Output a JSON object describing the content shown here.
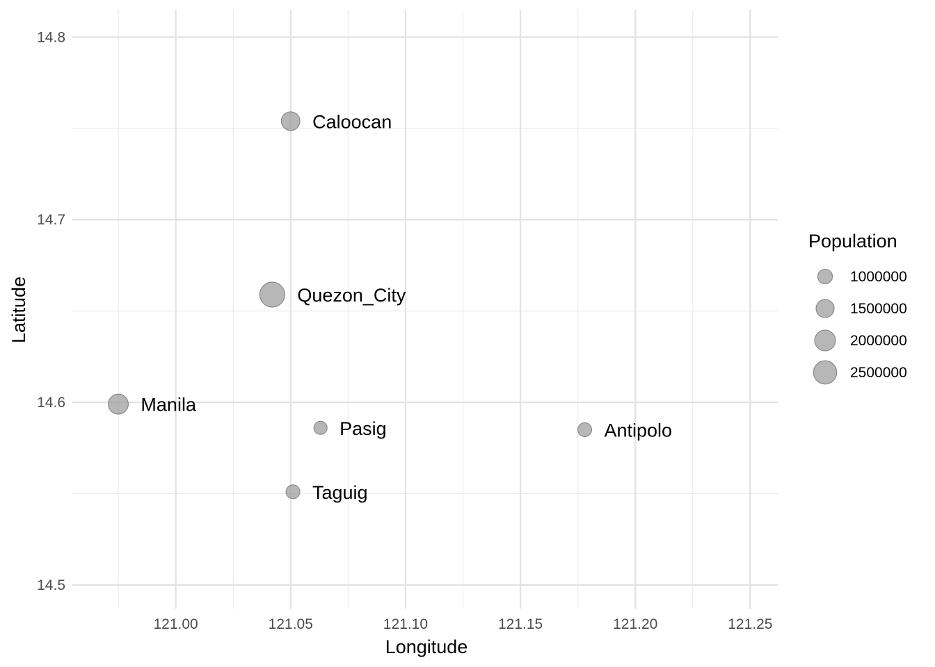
{
  "chart_data": {
    "type": "scatter",
    "title": "",
    "xlabel": "Longitude",
    "ylabel": "Latitude",
    "xlim": [
      120.955,
      121.262
    ],
    "ylim": [
      14.487,
      14.815
    ],
    "x_ticks": [
      121.0,
      121.05,
      121.1,
      121.15,
      121.2,
      121.25
    ],
    "x_tick_labels": [
      "121.00",
      "121.05",
      "121.10",
      "121.15",
      "121.20",
      "121.25"
    ],
    "y_ticks": [
      14.5,
      14.6,
      14.7,
      14.8
    ],
    "y_tick_labels": [
      "14.5",
      "14.6",
      "14.7",
      "14.8"
    ],
    "grid": true,
    "point_color": "#999999",
    "point_alpha": 0.7,
    "points": [
      {
        "label": "Caloocan",
        "x": 121.05,
        "y": 14.754,
        "size": 1600000
      },
      {
        "label": "Quezon_City",
        "x": 121.042,
        "y": 14.659,
        "size": 2900000
      },
      {
        "label": "Manila",
        "x": 120.975,
        "y": 14.599,
        "size": 1850000
      },
      {
        "label": "Pasig",
        "x": 121.063,
        "y": 14.586,
        "size": 800000
      },
      {
        "label": "Antipolo",
        "x": 121.178,
        "y": 14.585,
        "size": 880000
      },
      {
        "label": "Taguig",
        "x": 121.051,
        "y": 14.551,
        "size": 880000
      }
    ],
    "legend": {
      "title": "Population",
      "position": "right",
      "items": [
        {
          "label": "1000000",
          "value": 1000000
        },
        {
          "label": "1500000",
          "value": 1500000
        },
        {
          "label": "2000000",
          "value": 2000000
        },
        {
          "label": "2500000",
          "value": 2500000
        }
      ]
    }
  }
}
